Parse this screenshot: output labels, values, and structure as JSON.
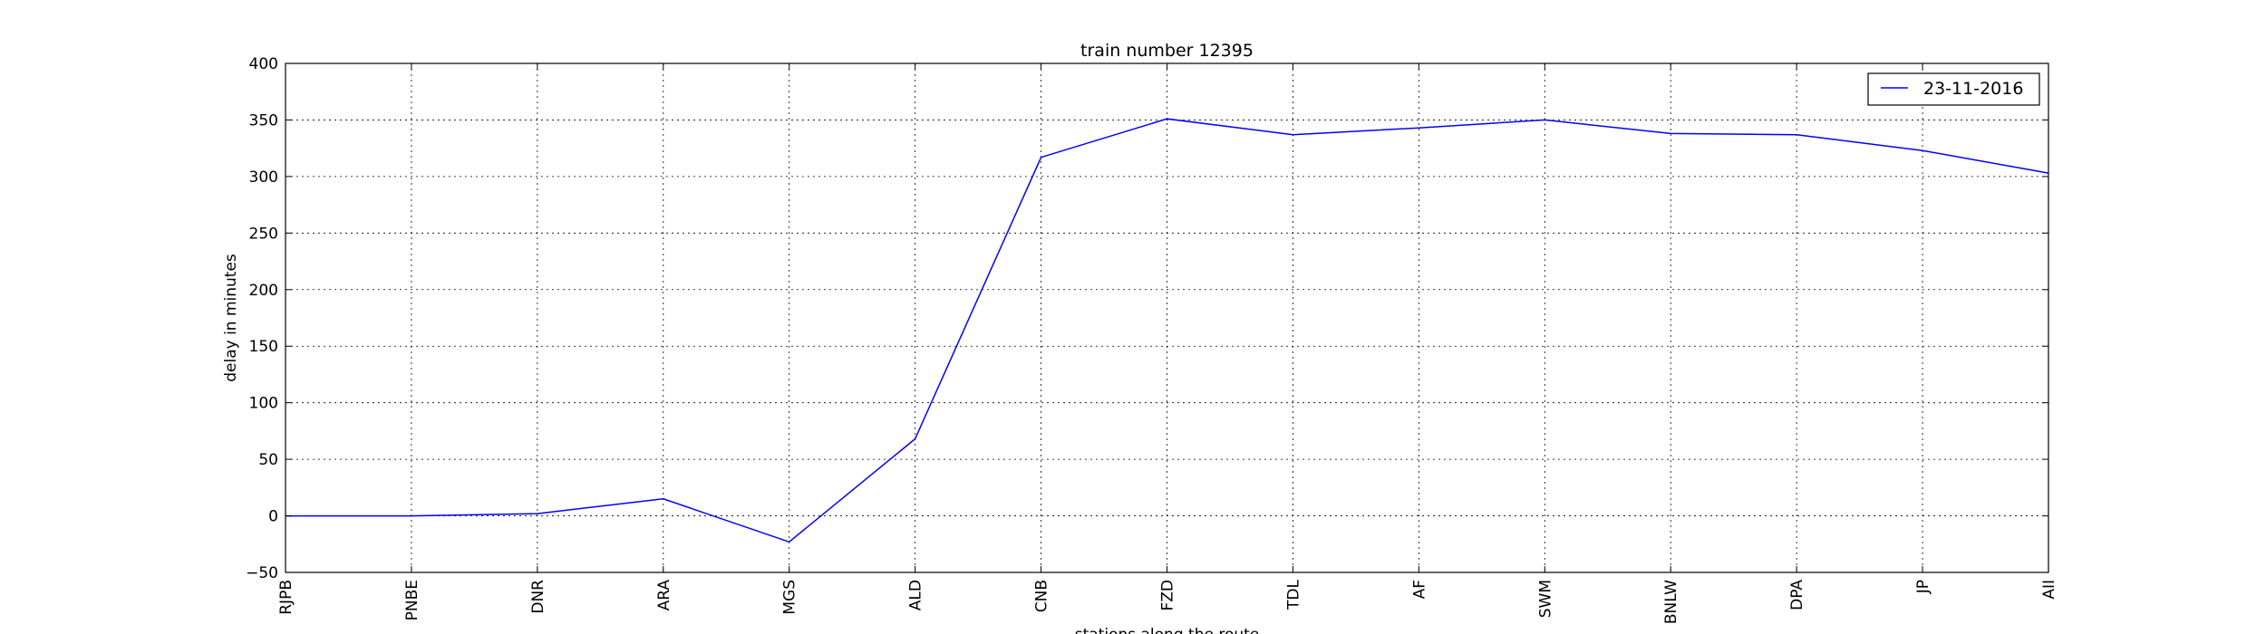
{
  "chart_data": {
    "type": "line",
    "title": "train number 12395",
    "xlabel": "stations along the route",
    "ylabel": "delay in minutes",
    "categories": [
      "RJPB",
      "PNBE",
      "DNR",
      "ARA",
      "MGS",
      "ALD",
      "CNB",
      "FZD",
      "TDL",
      "AF",
      "SWM",
      "BNLW",
      "DPA",
      "JP",
      "AII"
    ],
    "series": [
      {
        "name": "23-11-2016",
        "color": "#0000ff",
        "values": [
          0,
          0,
          2,
          15,
          -23,
          68,
          317,
          351,
          337,
          343,
          350,
          338,
          337,
          323,
          303
        ]
      }
    ],
    "ylim": [
      -50,
      400
    ],
    "yticks": [
      -50,
      0,
      50,
      100,
      150,
      200,
      250,
      300,
      350,
      400
    ],
    "grid": true,
    "legend_position": "top-right"
  }
}
